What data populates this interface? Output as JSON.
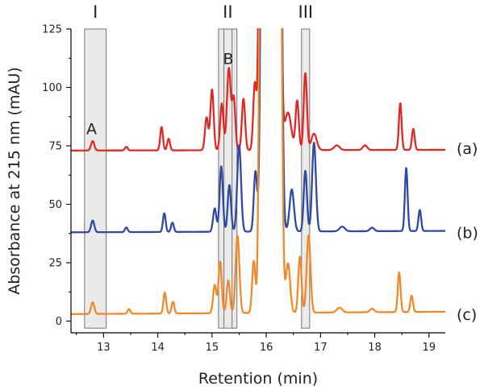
{
  "chart_data": {
    "type": "line",
    "title": "",
    "xlabel": "Retention (min)",
    "ylabel": "Absorbance at 215 nm (mAU)",
    "xlim": [
      12.4,
      19.3
    ],
    "ylim": [
      -5,
      125
    ],
    "xticks": [
      13,
      14,
      15,
      16,
      17,
      18,
      19
    ],
    "yticks": [
      0,
      25,
      50,
      75,
      100,
      125
    ],
    "grid": false,
    "colors": {
      "a": "#dd2a24",
      "b": "#2f4aa0",
      "c": "#ef8a2b",
      "box_fill": "#d8d8d8",
      "box_stroke": "#666666",
      "axis": "#000000"
    },
    "regions": [
      {
        "label": "I",
        "x0": 12.65,
        "x1": 13.05
      },
      {
        "label": "II",
        "x0": 15.12,
        "x1": 15.46
      },
      {
        "label": "III",
        "x0": 16.65,
        "x1": 16.8
      }
    ],
    "region_dividers": [
      15.22,
      15.37
    ],
    "peak_labels": [
      {
        "label": "A",
        "x": 12.78,
        "y": 80
      },
      {
        "label": "B",
        "x": 15.3,
        "y": 110
      }
    ],
    "series_labels": [
      {
        "label": "(a)",
        "series": "a",
        "y": 74
      },
      {
        "label": "(b)",
        "series": "b",
        "y": 38
      },
      {
        "label": "(c)",
        "series": "c",
        "y": 3
      }
    ],
    "series": [
      {
        "key": "a",
        "baseline": 73,
        "drift": 0.3,
        "peaks": [
          [
            12.8,
            4,
            0.03
          ],
          [
            13.42,
            1.5,
            0.025
          ],
          [
            14.07,
            10,
            0.025
          ],
          [
            14.2,
            5,
            0.025
          ],
          [
            14.9,
            14,
            0.03
          ],
          [
            15.0,
            26,
            0.03
          ],
          [
            15.18,
            20,
            0.03
          ],
          [
            15.31,
            35,
            0.035
          ],
          [
            15.4,
            22,
            0.03
          ],
          [
            15.58,
            22,
            0.03
          ],
          [
            15.79,
            28,
            0.03
          ],
          [
            15.9,
            190,
            0.03
          ],
          [
            16.07,
            420,
            0.08
          ],
          [
            16.23,
            190,
            0.035
          ],
          [
            16.4,
            16,
            0.06
          ],
          [
            16.57,
            21,
            0.03
          ],
          [
            16.72,
            33,
            0.03
          ],
          [
            16.88,
            7,
            0.05
          ],
          [
            17.3,
            2,
            0.05
          ],
          [
            17.82,
            2,
            0.04
          ],
          [
            18.47,
            20,
            0.025
          ],
          [
            18.71,
            9,
            0.025
          ]
        ]
      },
      {
        "key": "b",
        "baseline": 38,
        "drift": 0.6,
        "peaks": [
          [
            12.8,
            5,
            0.03
          ],
          [
            13.42,
            2,
            0.025
          ],
          [
            14.12,
            8,
            0.025
          ],
          [
            14.27,
            4,
            0.025
          ],
          [
            15.05,
            10,
            0.03
          ],
          [
            15.17,
            28,
            0.03
          ],
          [
            15.32,
            20,
            0.03
          ],
          [
            15.5,
            37,
            0.035
          ],
          [
            15.8,
            25,
            0.03
          ],
          [
            15.93,
            190,
            0.03
          ],
          [
            16.08,
            420,
            0.08
          ],
          [
            16.25,
            190,
            0.035
          ],
          [
            16.47,
            18,
            0.04
          ],
          [
            16.72,
            26,
            0.03
          ],
          [
            16.88,
            38,
            0.035
          ],
          [
            17.4,
            2,
            0.05
          ],
          [
            17.95,
            1.5,
            0.04
          ],
          [
            18.58,
            27,
            0.025
          ],
          [
            18.83,
            9,
            0.025
          ]
        ]
      },
      {
        "key": "c",
        "baseline": 3,
        "drift": 1.0,
        "peaks": [
          [
            12.8,
            5,
            0.03
          ],
          [
            13.47,
            2,
            0.025
          ],
          [
            14.13,
            9,
            0.025
          ],
          [
            14.28,
            5,
            0.025
          ],
          [
            15.05,
            12,
            0.03
          ],
          [
            15.15,
            22,
            0.03
          ],
          [
            15.3,
            14,
            0.03
          ],
          [
            15.47,
            33,
            0.035
          ],
          [
            15.77,
            22,
            0.03
          ],
          [
            15.9,
            190,
            0.03
          ],
          [
            16.08,
            420,
            0.08
          ],
          [
            16.25,
            190,
            0.035
          ],
          [
            16.4,
            21,
            0.04
          ],
          [
            16.62,
            24,
            0.03
          ],
          [
            16.78,
            33,
            0.035
          ],
          [
            17.35,
            2,
            0.05
          ],
          [
            17.95,
            1.5,
            0.04
          ],
          [
            18.45,
            17,
            0.025
          ],
          [
            18.68,
            7,
            0.025
          ]
        ]
      }
    ]
  }
}
